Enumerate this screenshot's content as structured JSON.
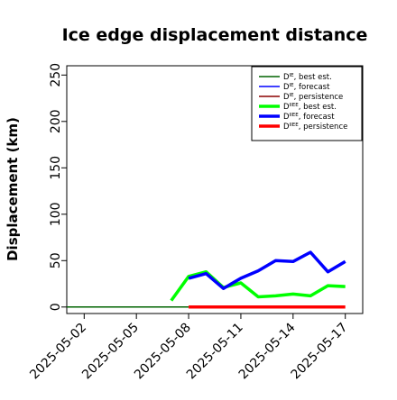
{
  "chart_data": {
    "type": "line",
    "title": "Ice edge displacement distance",
    "xlabel": "",
    "ylabel": "Displacement (km)",
    "x_ticks": [
      "2025-05-02",
      "2025-05-05",
      "2025-05-08",
      "2025-05-11",
      "2025-05-14",
      "2025-05-17"
    ],
    "x_tick_highlight": "2025-05-08",
    "highlight_color": "#228b22",
    "xlim": [
      "2025-05-01",
      "2025-05-18"
    ],
    "y_ticks": [
      0,
      50,
      100,
      150,
      200,
      250
    ],
    "ylim": [
      -7,
      260
    ],
    "grid": false,
    "legend_position": "top-right",
    "series": [
      {
        "name": "D^IE, best est.",
        "color": "#006400",
        "width": "thin",
        "x": [
          "2025-05-01",
          "2025-05-02",
          "2025-05-03",
          "2025-05-04",
          "2025-05-05",
          "2025-05-06",
          "2025-05-07",
          "2025-05-08"
        ],
        "values": [
          0,
          0,
          0,
          0,
          0,
          0,
          0,
          0
        ]
      },
      {
        "name": "D^IE, forecast",
        "color": "#0000ff",
        "width": "thin",
        "x": [],
        "values": []
      },
      {
        "name": "D^IE, persistence",
        "color": "#8b0000",
        "width": "thin",
        "x": [],
        "values": []
      },
      {
        "name": "D^IIEE, best est.",
        "color": "#00ff00",
        "width": "thick",
        "x": [
          "2025-05-07",
          "2025-05-08",
          "2025-05-09",
          "2025-05-10",
          "2025-05-11",
          "2025-05-12",
          "2025-05-13",
          "2025-05-14",
          "2025-05-15",
          "2025-05-16",
          "2025-05-17"
        ],
        "values": [
          7,
          33,
          38,
          21,
          26,
          11,
          12,
          14,
          12,
          23,
          22
        ]
      },
      {
        "name": "D^IIEE, forecast",
        "color": "#0000ff",
        "width": "thick",
        "x": [
          "2025-05-08",
          "2025-05-09",
          "2025-05-10",
          "2025-05-11",
          "2025-05-12",
          "2025-05-13",
          "2025-05-14",
          "2025-05-15",
          "2025-05-16",
          "2025-05-17"
        ],
        "values": [
          31,
          36,
          20,
          31,
          39,
          50,
          49,
          59,
          38,
          49
        ]
      },
      {
        "name": "D^IIEE, persistence",
        "color": "#ff0000",
        "width": "thick",
        "x": [
          "2025-05-08",
          "2025-05-09",
          "2025-05-10",
          "2025-05-11",
          "2025-05-12",
          "2025-05-13",
          "2025-05-14",
          "2025-05-15",
          "2025-05-16",
          "2025-05-17"
        ],
        "values": [
          0,
          0,
          0,
          0,
          0,
          0,
          0,
          0,
          0,
          0
        ]
      }
    ],
    "legend": [
      {
        "base": "D",
        "sup": "IE",
        "suffix": ", best est.",
        "color": "#006400",
        "width": "thin"
      },
      {
        "base": "D",
        "sup": "IE",
        "suffix": ", forecast",
        "color": "#0000ff",
        "width": "thin"
      },
      {
        "base": "D",
        "sup": "IE",
        "suffix": ", persistence",
        "color": "#8b0000",
        "width": "thin"
      },
      {
        "base": "D",
        "sup": "IIEE",
        "suffix": ", best est.",
        "color": "#00ff00",
        "width": "thick"
      },
      {
        "base": "D",
        "sup": "IIEE",
        "suffix": ", forecast",
        "color": "#0000ff",
        "width": "thick"
      },
      {
        "base": "D",
        "sup": "IIEE",
        "suffix": ", persistence",
        "color": "#ff0000",
        "width": "thick"
      }
    ]
  }
}
